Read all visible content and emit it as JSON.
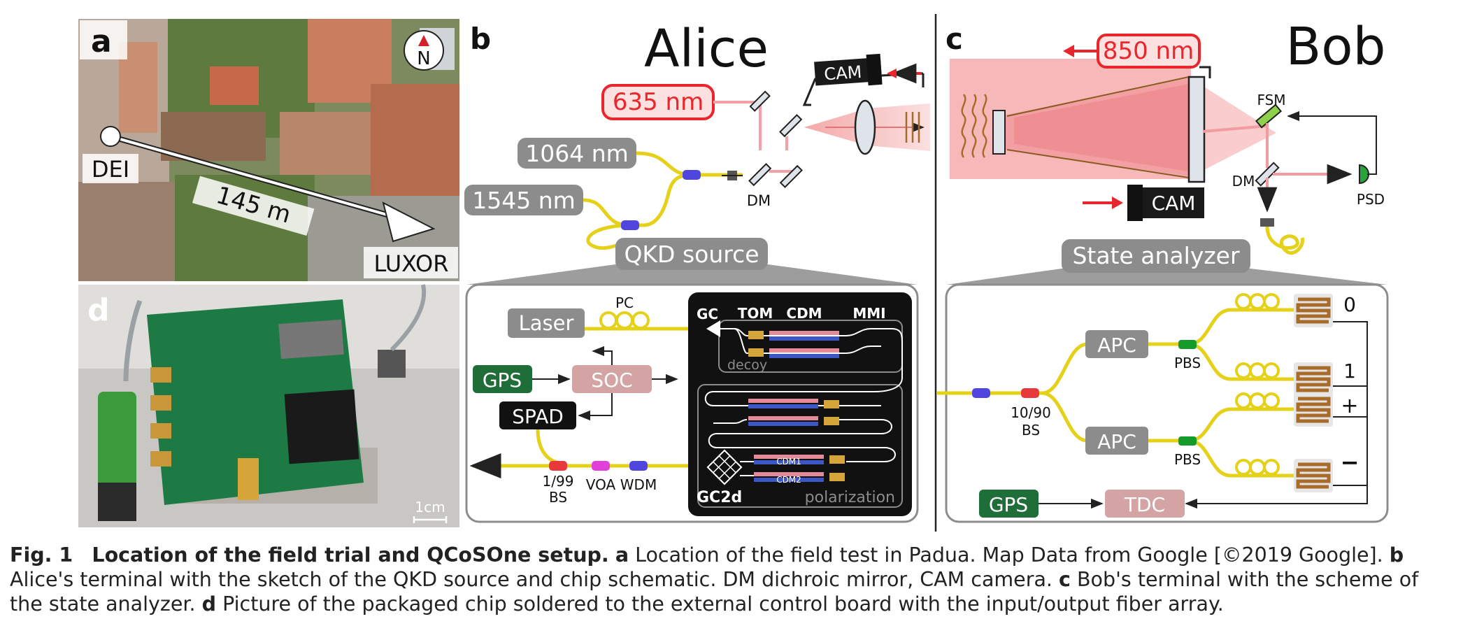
{
  "panels": {
    "a": {
      "letter": "a",
      "compass": "N",
      "start_label": "DEI",
      "end_label": "LUXOR",
      "distance": "145 m"
    },
    "b": {
      "letter": "b",
      "title": "Alice",
      "laser_635": "635 nm",
      "laser_1064": "1064 nm",
      "laser_1545": "1545 nm",
      "cam": "CAM",
      "dm": "DM",
      "source_label": "QKD source",
      "chip": {
        "laser": "Laser",
        "pc": "PC",
        "gps": "GPS",
        "soc": "SOC",
        "spad": "SPAD",
        "gc": "GC",
        "tom": "TOM",
        "cdm": "CDM",
        "mmi": "MMI",
        "decoy": "decoy",
        "cdm1": "CDM1",
        "cdm2": "CDM2",
        "gc2d": "GC2d",
        "polarization": "polarization",
        "bs_line1": "1/99",
        "bs_line2": "BS",
        "voa": "VOA",
        "wdm": "WDM"
      }
    },
    "c": {
      "letter": "c",
      "title": "Bob",
      "laser_850": "850 nm",
      "cam": "CAM",
      "fsm": "FSM",
      "dm": "DM",
      "psd": "PSD",
      "analyzer_label": "State analyzer",
      "analyzer": {
        "apc_top": "APC",
        "apc_bottom": "APC",
        "pbs_top": "PBS",
        "pbs_bottom": "PBS",
        "bs_line1": "10/90",
        "bs_line2": "BS",
        "out0": "0",
        "out1": "1",
        "out_plus": "+",
        "out_minus": "−",
        "gps": "GPS",
        "tdc": "TDC"
      }
    },
    "d": {
      "letter": "d",
      "scale": "1cm"
    }
  },
  "caption": {
    "fig": "Fig. 1",
    "title": "Location of the field trial and QCoSOne setup.",
    "a_letter": "a",
    "a_text": "Location of the field test in Padua. Map Data from Google [©2019 Google].",
    "b_letter": "b",
    "b_text": "Alice's terminal with the sketch of the QKD source and chip schematic. DM dichroic mirror, CAM camera.",
    "c_letter": "c",
    "c_text": "Bob's terminal with the scheme of the state analyzer.",
    "d_letter": "d",
    "d_text": "Picture of the packaged chip soldered to the external control board with the input/output fiber array."
  },
  "colors": {
    "fiber": "#e6d11a",
    "red": "#e8262b",
    "gray_box": "#8c8c8c",
    "gps_green": "#1f6e3a",
    "soc_pink": "#d4a3a3",
    "modulator_blue": "#3d57c7",
    "modulator_pink": "#e58a99",
    "chip_black": "#111111",
    "bs_red": "#e8383c",
    "voa_magenta": "#e23ed8",
    "wdm_blue": "#4f46e0",
    "pbs_green": "#159b2a",
    "detector_brown": "#a86b2a",
    "beam_pink": "#f6b8b8"
  }
}
